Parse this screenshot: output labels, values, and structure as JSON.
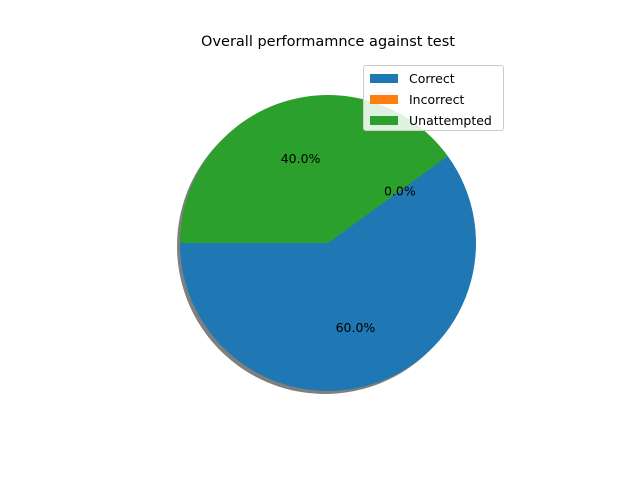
{
  "chart_data": {
    "type": "pie",
    "title": "Overall performamnce against test",
    "categories": [
      "Correct",
      "Incorrect",
      "Unattempted"
    ],
    "values": [
      60.0,
      0.0,
      40.0
    ],
    "labels": [
      "60.0%",
      "0.0%",
      "40.0%"
    ],
    "colors": [
      "#1f77b4",
      "#ff7f0e",
      "#2ca02c"
    ],
    "start_angle_deg": 180,
    "shadow": true,
    "legend": "upper-right"
  }
}
